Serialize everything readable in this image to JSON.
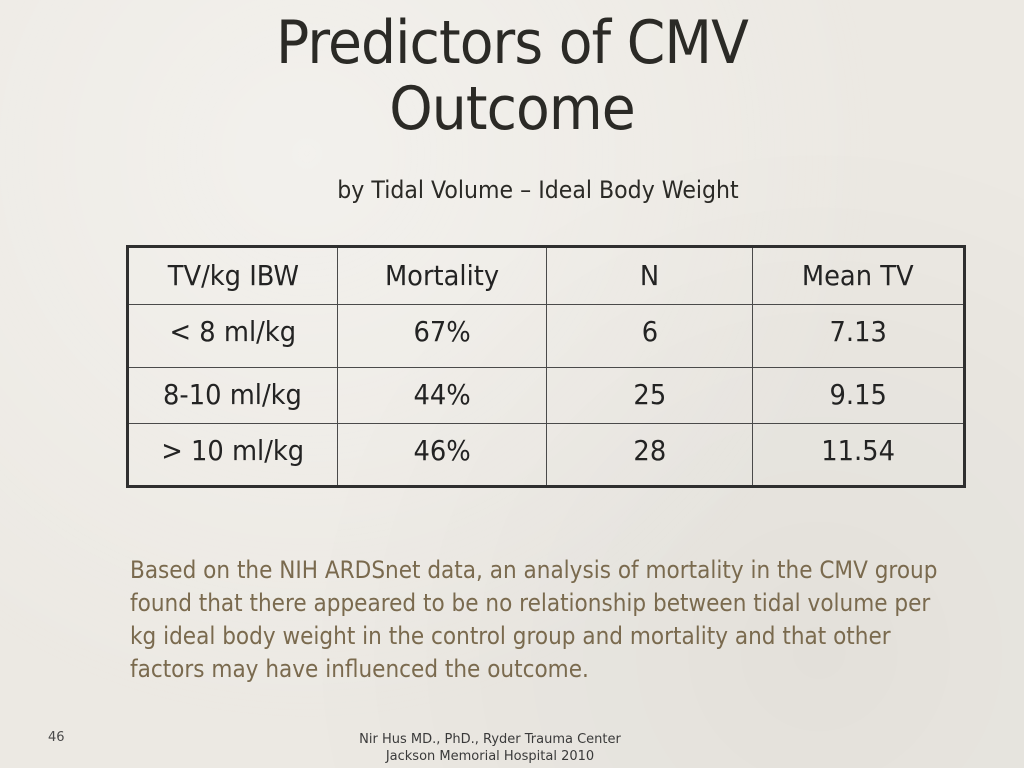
{
  "title": {
    "line1": "Predictors of CMV",
    "line2": "Outcome"
  },
  "subtitle": "by Tidal Volume – Ideal Body Weight",
  "table": {
    "headers": [
      "TV/kg IBW",
      "Mortality",
      "N",
      "Mean TV"
    ],
    "rows": [
      [
        "< 8 ml/kg",
        "67%",
        "6",
        "7.13"
      ],
      [
        "8-10 ml/kg",
        "44%",
        "25",
        "9.15"
      ],
      [
        "> 10 ml/kg",
        "46%",
        "28",
        "11.54"
      ]
    ]
  },
  "body_text": "Based on the NIH ARDSnet data, an analysis of mortality in the CMV group found that there appeared to be no relationship between tidal volume per kg ideal body weight in the control group and mortality and that other factors may have influenced the outcome.",
  "page_number": "46",
  "footer": {
    "line1": "Nir Hus MD., PhD.,  Ryder Trauma Center",
    "line2": "Jackson Memorial Hospital 2010"
  },
  "colors": {
    "background": "#ece9e3",
    "title_text": "#2b2a26",
    "body_text": "#7a6a4e",
    "table_border": "#2f2f2f"
  }
}
